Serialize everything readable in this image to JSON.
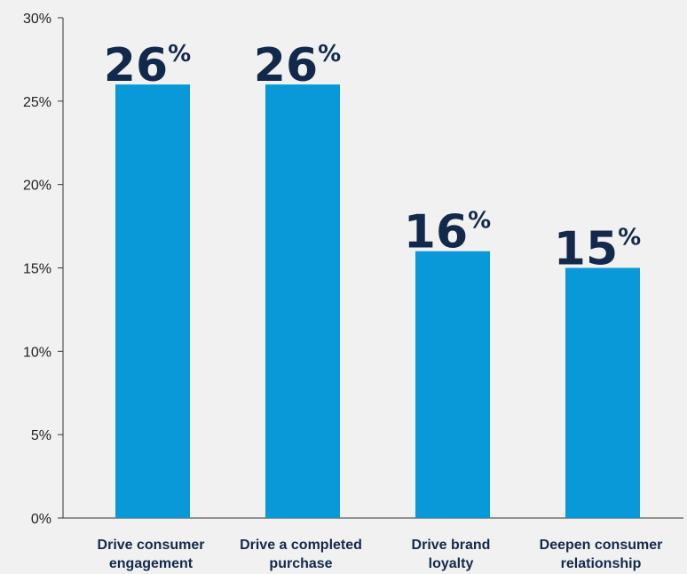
{
  "chart_data": {
    "type": "bar",
    "categories": [
      [
        "Drive consumer",
        "engagement"
      ],
      [
        "Drive a completed",
        "purchase"
      ],
      [
        "Drive brand",
        "loyalty"
      ],
      [
        "Deepen consumer",
        "relationship"
      ]
    ],
    "values": [
      26,
      26,
      16,
      15
    ],
    "data_labels": [
      {
        "number": "26",
        "unit": "%"
      },
      {
        "number": "26",
        "unit": "%"
      },
      {
        "number": "16",
        "unit": "%"
      },
      {
        "number": "15",
        "unit": "%"
      }
    ],
    "y_ticks": [
      "0%",
      "5%",
      "10%",
      "15%",
      "20%",
      "25%",
      "30%"
    ],
    "ylim": [
      0,
      30
    ],
    "grid": false,
    "legend": "none",
    "colors": {
      "bar": "#0a99d8",
      "label": "#13294b",
      "axis": "#333333",
      "background": "#f1f1f1"
    }
  }
}
